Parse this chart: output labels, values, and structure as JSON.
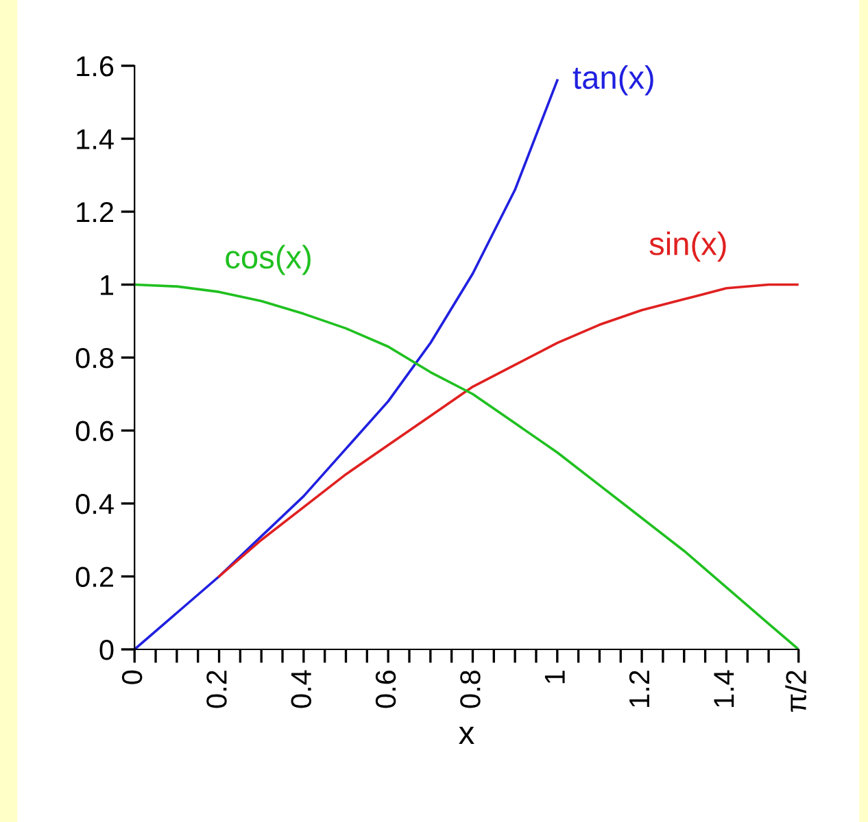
{
  "chart_data": {
    "type": "line",
    "xlabel": "x",
    "series": [
      {
        "name": "tan(x)",
        "color": "#2020e0",
        "x": [
          0,
          0.1,
          0.2,
          0.3,
          0.4,
          0.5,
          0.6,
          0.7,
          0.8,
          0.9,
          1.0
        ],
        "values": [
          0,
          0.1,
          0.2,
          0.31,
          0.42,
          0.55,
          0.68,
          0.84,
          1.03,
          1.26,
          1.56
        ]
      },
      {
        "name": "sin(x)",
        "color": "#e02020",
        "x": [
          0.2,
          0.3,
          0.4,
          0.5,
          0.6,
          0.7,
          0.8,
          0.9,
          1.0,
          1.1,
          1.2,
          1.3,
          1.4,
          1.5,
          1.5708
        ],
        "values": [
          0.2,
          0.3,
          0.39,
          0.48,
          0.56,
          0.64,
          0.72,
          0.78,
          0.84,
          0.89,
          0.93,
          0.96,
          0.99,
          1.0,
          1.0
        ]
      },
      {
        "name": "cos(x)",
        "color": "#20c020",
        "x": [
          0,
          0.1,
          0.2,
          0.3,
          0.4,
          0.5,
          0.6,
          0.7,
          0.8,
          0.9,
          1.0,
          1.1,
          1.2,
          1.3,
          1.4,
          1.5,
          1.5708
        ],
        "values": [
          1,
          0.995,
          0.98,
          0.955,
          0.92,
          0.88,
          0.83,
          0.76,
          0.7,
          0.62,
          0.54,
          0.45,
          0.36,
          0.27,
          0.17,
          0.07,
          0
        ]
      }
    ],
    "xlim": [
      0,
      1.5708
    ],
    "ylim": [
      0,
      1.6
    ],
    "xticks": [
      0,
      {
        "value": 0.05,
        "label": null
      },
      {
        "value": 0.1,
        "label": null
      },
      {
        "value": 0.15,
        "label": null
      },
      0.2,
      {
        "value": 0.25,
        "label": null
      },
      {
        "value": 0.3,
        "label": null
      },
      {
        "value": 0.35,
        "label": null
      },
      0.4,
      {
        "value": 0.45,
        "label": null
      },
      {
        "value": 0.5,
        "label": null
      },
      {
        "value": 0.55,
        "label": null
      },
      0.6,
      {
        "value": 0.65,
        "label": null
      },
      {
        "value": 0.7,
        "label": null
      },
      {
        "value": 0.75,
        "label": null
      },
      0.8,
      {
        "value": 0.85,
        "label": null
      },
      {
        "value": 0.9,
        "label": null
      },
      {
        "value": 0.95,
        "label": null
      },
      1,
      {
        "value": 1.05,
        "label": null
      },
      {
        "value": 1.1,
        "label": null
      },
      {
        "value": 1.15,
        "label": null
      },
      1.2,
      {
        "value": 1.25,
        "label": null
      },
      {
        "value": 1.3,
        "label": null
      },
      {
        "value": 1.35,
        "label": null
      },
      1.4,
      {
        "value": 1.45,
        "label": null
      },
      {
        "value": 1.5,
        "label": null
      },
      {
        "value": 1.5708,
        "label": "π/2"
      }
    ],
    "yticks": [
      0,
      0.2,
      0.4,
      0.6,
      0.8,
      1,
      1.2,
      1.4,
      1.6
    ],
    "grid": false,
    "legend": false,
    "marker": "none",
    "line_style": "solid"
  }
}
